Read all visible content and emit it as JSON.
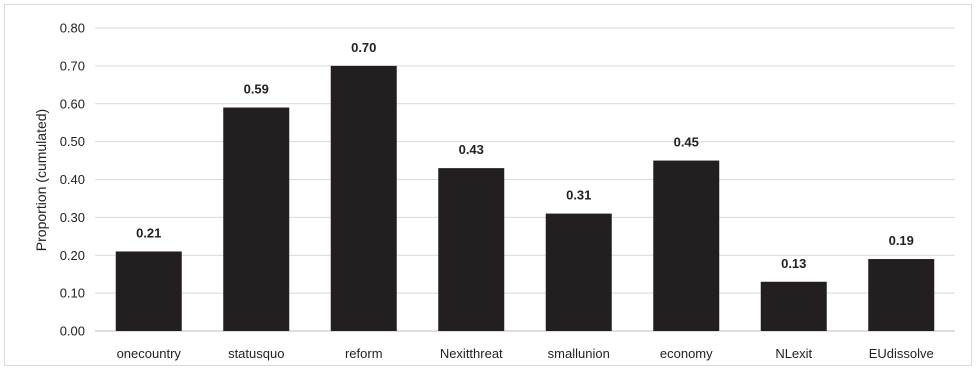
{
  "chart_data": {
    "type": "bar",
    "title": "",
    "xlabel": "",
    "ylabel": "Proportion (cumulated)",
    "ylim": [
      0,
      0.8
    ],
    "ytick_step": 0.1,
    "yticks": [
      "0.00",
      "0.10",
      "0.20",
      "0.30",
      "0.40",
      "0.50",
      "0.60",
      "0.70",
      "0.80"
    ],
    "grid": true,
    "legend": "none",
    "bar_color": "#231f20",
    "grid_color": "#d9d9d9",
    "categories": [
      "onecountry",
      "statusquo",
      "reform",
      "Nexitthreat",
      "smallunion",
      "economy",
      "NLexit",
      "EUdissolve"
    ],
    "values": [
      0.21,
      0.59,
      0.7,
      0.43,
      0.31,
      0.45,
      0.13,
      0.19
    ],
    "value_labels": [
      "0.21",
      "0.59",
      "0.70",
      "0.43",
      "0.31",
      "0.45",
      "0.13",
      "0.19"
    ]
  }
}
